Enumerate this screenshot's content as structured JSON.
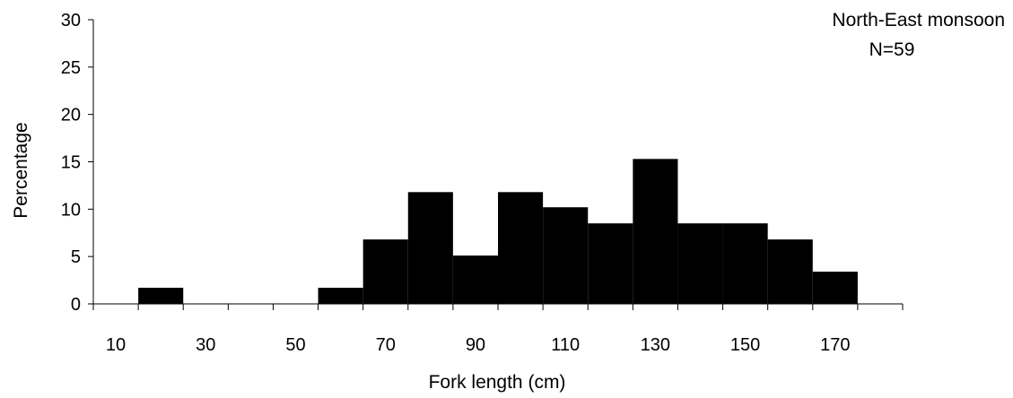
{
  "chart_data": {
    "type": "bar",
    "title": "",
    "xlabel": "Fork length (cm)",
    "ylabel": "Percentage",
    "ylim": [
      0,
      30
    ],
    "yticks": [
      0,
      5,
      10,
      15,
      20,
      25,
      30
    ],
    "xlim": [
      5,
      185
    ],
    "xtick_labels": [
      "10",
      "30",
      "50",
      "70",
      "90",
      "110",
      "130",
      "150",
      "170"
    ],
    "bin_width": 10,
    "bin_centers": [
      10,
      20,
      30,
      40,
      50,
      60,
      70,
      80,
      90,
      100,
      110,
      120,
      130,
      140,
      150,
      160,
      170,
      180
    ],
    "values": [
      0,
      1.7,
      0,
      0,
      0,
      1.7,
      6.8,
      11.8,
      5.1,
      11.8,
      10.2,
      8.5,
      15.3,
      8.5,
      8.5,
      6.8,
      3.4,
      0
    ],
    "bar_color": "#000000",
    "grid": false,
    "annotations": [
      "North-East monsoon",
      "N=59"
    ]
  }
}
